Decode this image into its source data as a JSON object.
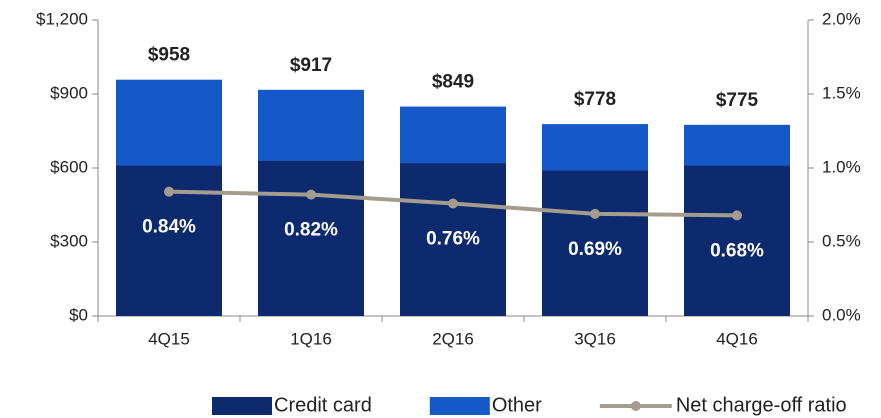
{
  "chart_data": {
    "type": "bar",
    "categories": [
      "4Q15",
      "1Q16",
      "2Q16",
      "3Q16",
      "4Q16"
    ],
    "stacked": true,
    "series": [
      {
        "name": "Credit card",
        "color": "#0d2a6e",
        "values": [
          610,
          630,
          620,
          590,
          610
        ]
      },
      {
        "name": "Other",
        "color": "#1558c8",
        "values": [
          348,
          287,
          229,
          188,
          165
        ]
      },
      {
        "name": "Net charge-off ratio",
        "type": "line",
        "axis": "y2",
        "color": "#a49d8f",
        "values": [
          0.84,
          0.82,
          0.76,
          0.69,
          0.68
        ],
        "value_labels": [
          "0.84%",
          "0.82%",
          "0.76%",
          "0.69%",
          "0.68%"
        ]
      }
    ],
    "total_labels": [
      "$958",
      "$917",
      "$849",
      "$778",
      "$775"
    ],
    "ylim": [
      0,
      1200
    ],
    "yticks": [
      {
        "value": 0,
        "label": "$0"
      },
      {
        "value": 300,
        "label": "$300"
      },
      {
        "value": 600,
        "label": "$600"
      },
      {
        "value": 900,
        "label": "$900"
      },
      {
        "value": 1200,
        "label": "$1,200"
      }
    ],
    "y2lim": [
      0,
      2
    ],
    "y2ticks": [
      {
        "value": 0,
        "label": "0.0%"
      },
      {
        "value": 0.5,
        "label": "0.5%"
      },
      {
        "value": 1,
        "label": "1.0%"
      },
      {
        "value": 1.5,
        "label": "1.5%"
      },
      {
        "value": 2,
        "label": "2.0%"
      }
    ],
    "legend": "bottom"
  }
}
